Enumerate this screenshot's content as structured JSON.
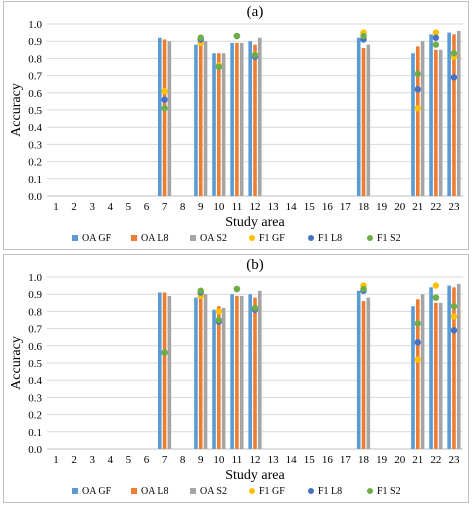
{
  "chart_data": [
    {
      "type": "bar",
      "title": "(a)",
      "xlabel": "Study area",
      "ylabel": "Accuracy",
      "ylim": [
        0,
        1.0
      ],
      "yticks": [
        "0.0",
        "0.1",
        "0.2",
        "0.3",
        "0.4",
        "0.5",
        "0.6",
        "0.7",
        "0.8",
        "0.9",
        "1.0"
      ],
      "categories": [
        "1",
        "2",
        "3",
        "4",
        "5",
        "6",
        "7",
        "8",
        "9",
        "10",
        "11",
        "12",
        "13",
        "14",
        "15",
        "16",
        "17",
        "18",
        "19",
        "20",
        "21",
        "22",
        "23"
      ],
      "grid": "horizontal",
      "legend_position": "bottom",
      "bar_series": [
        {
          "name": "OA GF",
          "color": "#5b9bd5",
          "values": [
            null,
            null,
            null,
            null,
            null,
            null,
            0.92,
            null,
            0.88,
            0.83,
            0.89,
            0.9,
            null,
            null,
            null,
            null,
            null,
            0.92,
            null,
            null,
            0.83,
            0.94,
            0.95
          ]
        },
        {
          "name": "OA L8",
          "color": "#ed7d31",
          "values": [
            null,
            null,
            null,
            null,
            null,
            null,
            0.91,
            null,
            0.92,
            0.83,
            0.89,
            0.88,
            null,
            null,
            null,
            null,
            null,
            0.86,
            null,
            null,
            0.87,
            0.85,
            0.94
          ]
        },
        {
          "name": "OA S2",
          "color": "#a5a5a5",
          "values": [
            null,
            null,
            null,
            null,
            null,
            null,
            0.9,
            null,
            0.9,
            0.83,
            0.89,
            0.92,
            null,
            null,
            null,
            null,
            null,
            0.88,
            null,
            null,
            0.9,
            0.85,
            0.96
          ]
        }
      ],
      "point_series": [
        {
          "name": "F1 GF",
          "color": "#ffc000",
          "values": [
            null,
            null,
            null,
            null,
            null,
            null,
            0.61,
            null,
            0.89,
            0.76,
            0.93,
            0.82,
            null,
            null,
            null,
            null,
            null,
            0.95,
            null,
            null,
            0.51,
            0.95,
            0.81
          ]
        },
        {
          "name": "F1 L8",
          "color": "#4472c4",
          "values": [
            null,
            null,
            null,
            null,
            null,
            null,
            0.56,
            null,
            0.91,
            0.75,
            0.93,
            0.81,
            null,
            null,
            null,
            null,
            null,
            0.91,
            null,
            null,
            0.62,
            0.92,
            0.69
          ]
        },
        {
          "name": "F1 S2",
          "color": "#70ad47",
          "values": [
            null,
            null,
            null,
            null,
            null,
            null,
            0.51,
            null,
            0.92,
            0.75,
            0.93,
            0.82,
            null,
            null,
            null,
            null,
            null,
            0.93,
            null,
            null,
            0.71,
            0.88,
            0.83
          ]
        }
      ]
    },
    {
      "type": "bar",
      "title": "(b)",
      "xlabel": "Study area",
      "ylabel": "Accuracy",
      "ylim": [
        0,
        1.0
      ],
      "yticks": [
        "0.0",
        "0.1",
        "0.2",
        "0.3",
        "0.4",
        "0.5",
        "0.6",
        "0.7",
        "0.8",
        "0.9",
        "1.0"
      ],
      "categories": [
        "1",
        "2",
        "3",
        "4",
        "5",
        "6",
        "7",
        "8",
        "9",
        "10",
        "11",
        "12",
        "13",
        "14",
        "15",
        "16",
        "17",
        "18",
        "19",
        "20",
        "21",
        "22",
        "23"
      ],
      "grid": "horizontal",
      "legend_position": "bottom",
      "bar_series": [
        {
          "name": "OA GF",
          "color": "#5b9bd5",
          "values": [
            null,
            null,
            null,
            null,
            null,
            null,
            0.91,
            null,
            0.88,
            0.81,
            0.9,
            0.9,
            null,
            null,
            null,
            null,
            null,
            0.92,
            null,
            null,
            0.83,
            0.94,
            0.95
          ]
        },
        {
          "name": "OA L8",
          "color": "#ed7d31",
          "values": [
            null,
            null,
            null,
            null,
            null,
            null,
            0.91,
            null,
            0.91,
            0.83,
            0.89,
            0.88,
            null,
            null,
            null,
            null,
            null,
            0.86,
            null,
            null,
            0.87,
            0.85,
            0.94
          ]
        },
        {
          "name": "OA S2",
          "color": "#a5a5a5",
          "values": [
            null,
            null,
            null,
            null,
            null,
            null,
            0.89,
            null,
            0.9,
            0.82,
            0.89,
            0.92,
            null,
            null,
            null,
            null,
            null,
            0.88,
            null,
            null,
            0.9,
            0.85,
            0.96
          ]
        }
      ],
      "point_series": [
        {
          "name": "F1 GF",
          "color": "#ffc000",
          "values": [
            null,
            null,
            null,
            null,
            null,
            null,
            0.56,
            null,
            0.89,
            0.8,
            0.93,
            0.82,
            null,
            null,
            null,
            null,
            null,
            0.95,
            null,
            null,
            0.52,
            0.95,
            0.77
          ]
        },
        {
          "name": "F1 L8",
          "color": "#4472c4",
          "values": [
            null,
            null,
            null,
            null,
            null,
            null,
            0.56,
            null,
            0.91,
            0.74,
            0.93,
            0.81,
            null,
            null,
            null,
            null,
            null,
            0.92,
            null,
            null,
            0.62,
            0.88,
            0.69
          ]
        },
        {
          "name": "F1 S2",
          "color": "#70ad47",
          "values": [
            null,
            null,
            null,
            null,
            null,
            null,
            0.56,
            null,
            0.92,
            0.75,
            0.93,
            0.82,
            null,
            null,
            null,
            null,
            null,
            0.93,
            null,
            null,
            0.73,
            0.88,
            0.83
          ]
        }
      ]
    }
  ]
}
